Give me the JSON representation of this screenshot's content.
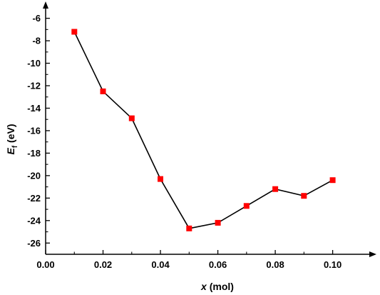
{
  "chart_data": {
    "type": "line",
    "xlabel_var": "x",
    "xlabel_unit": " (mol)",
    "ylabel_var": "E",
    "ylabel_sub": "f",
    "ylabel_unit": " (eV)",
    "xlim": [
      0.0,
      0.115
    ],
    "ylim": [
      -27,
      -4.5
    ],
    "x_ticks": [
      0.0,
      0.02,
      0.04,
      0.06,
      0.08,
      0.1
    ],
    "x_tick_labels": [
      "0.00",
      "0.02",
      "0.04",
      "0.06",
      "0.08",
      "0.10"
    ],
    "y_ticks": [
      -6,
      -8,
      -10,
      -12,
      -14,
      -16,
      -18,
      -20,
      -22,
      -24,
      -26
    ],
    "y_tick_labels": [
      "-6",
      "-8",
      "-10",
      "-12",
      "-14",
      "-16",
      "-18",
      "-20",
      "-22",
      "-24",
      "-26"
    ],
    "grid": false,
    "series": [
      {
        "marker": "square",
        "color": "#ff0000",
        "line_color": "#000000",
        "x": [
          0.01,
          0.02,
          0.03,
          0.04,
          0.05,
          0.06,
          0.07,
          0.08,
          0.09,
          0.1
        ],
        "y": [
          -7.2,
          -12.5,
          -14.9,
          -20.3,
          -24.7,
          -24.2,
          -22.7,
          -21.2,
          -21.8,
          -20.4
        ]
      }
    ]
  }
}
